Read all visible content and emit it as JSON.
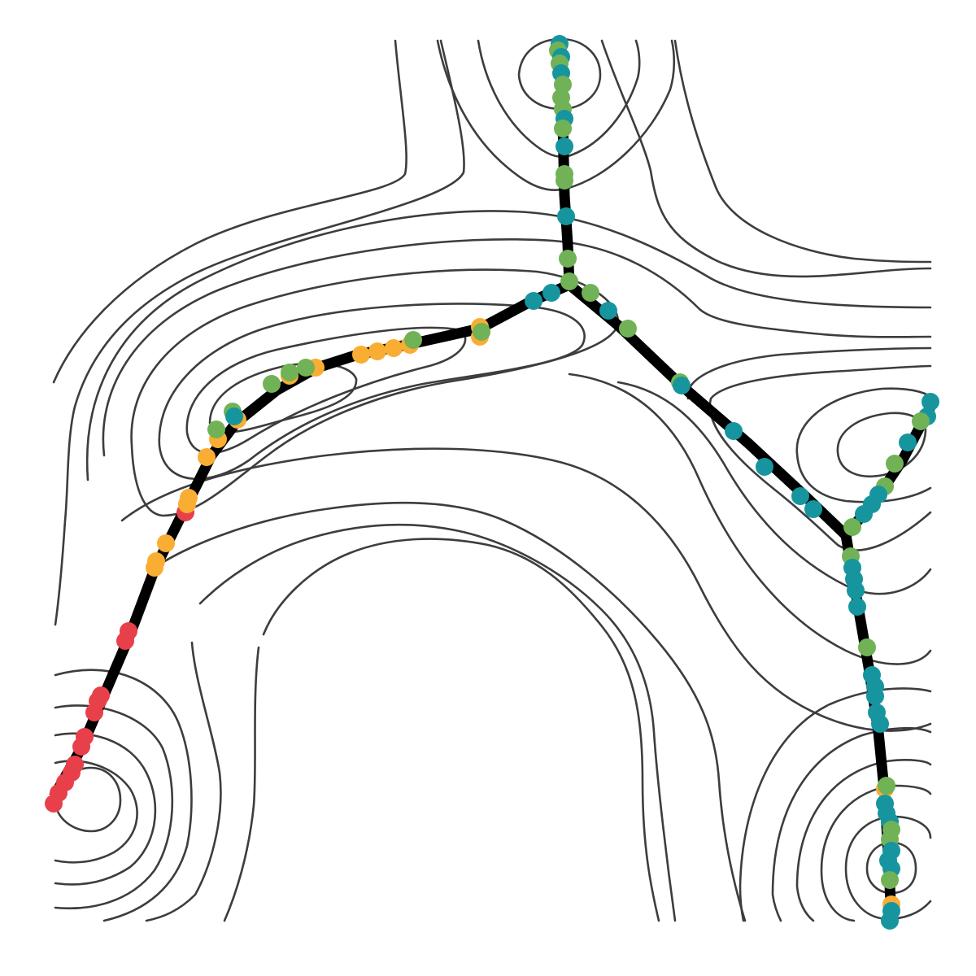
{
  "figure": {
    "kind": "trajectory-on-density-contours",
    "contour_color": "#3d3d3d",
    "trajectory_color": "#000000",
    "point_colors": {
      "red": "#e8404a",
      "orange": "#f9ad33",
      "green": "#71b257",
      "teal": "#16959f"
    }
  }
}
